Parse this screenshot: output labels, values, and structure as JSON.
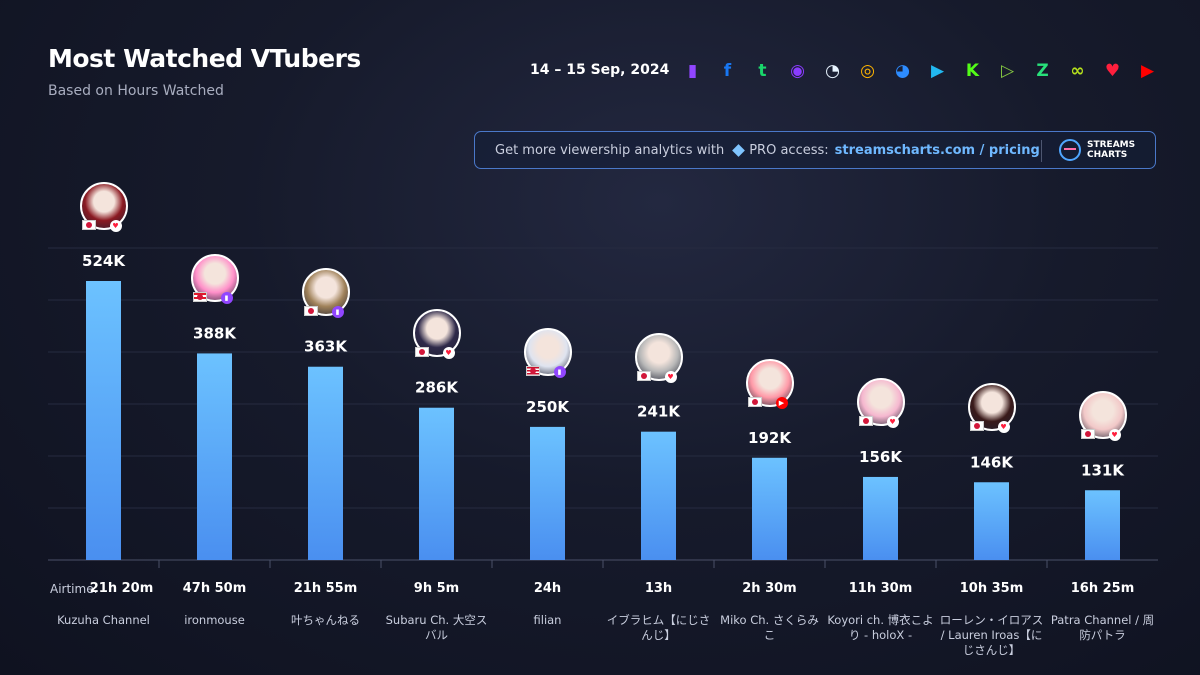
{
  "header": {
    "title": "Most Watched VTubers",
    "subtitle": "Based on Hours Watched",
    "date": "14 – 15 Sep, 2024"
  },
  "platforms": [
    {
      "name": "twitch-icon",
      "color": "#9146ff",
      "glyph": "▮"
    },
    {
      "name": "facebook-icon",
      "color": "#1877f2",
      "glyph": "f"
    },
    {
      "name": "trovo-icon",
      "color": "#19d66b",
      "glyph": "t"
    },
    {
      "name": "nimo-icon",
      "color": "#8a3cff",
      "glyph": "◉"
    },
    {
      "name": "ghost-icon",
      "color": "#e8f4ff",
      "glyph": "◔"
    },
    {
      "name": "dlive-icon",
      "color": "#ffb400",
      "glyph": "◎"
    },
    {
      "name": "bilibili-icon",
      "color": "#2d8cff",
      "glyph": "◕"
    },
    {
      "name": "camera-icon",
      "color": "#22b8f0",
      "glyph": "▶"
    },
    {
      "name": "kick-icon",
      "color": "#53fc18",
      "glyph": "K"
    },
    {
      "name": "rumble-icon",
      "color": "#85c742",
      "glyph": "▷"
    },
    {
      "name": "zap-icon",
      "color": "#28e07a",
      "glyph": "Z"
    },
    {
      "name": "infinity-icon",
      "color": "#b6e11c",
      "glyph": "∞"
    },
    {
      "name": "heart-icon",
      "color": "#ff1f3d",
      "glyph": "♥"
    },
    {
      "name": "youtube-icon",
      "color": "#ff0000",
      "glyph": "▶"
    }
  ],
  "banner": {
    "text": "Get more viewership analytics with",
    "pro": "PRO access:",
    "link": "streamscharts.com / pricing",
    "brand_line1": "STREAMS",
    "brand_line2": "CHARTS"
  },
  "airtime_label": "Airtime:",
  "colors": {
    "bar_top": "#6cc2ff",
    "bar_bottom": "#4a8ff0",
    "flag_red": "#d2173a"
  },
  "chart_data": {
    "type": "bar",
    "title": "Most Watched VTubers",
    "subtitle": "Based on Hours Watched",
    "categories": [
      "Kuzuha Channel",
      "ironmouse",
      "叶ちゃんねる",
      "Subaru Ch. 大空スバル",
      "filian",
      "イブラヒム【にじさんじ】",
      "Miko Ch. さくらみこ",
      "Koyori ch. 博衣こより - holoX -",
      "ローレン・イロアス / Lauren Iroas【にじさんじ】",
      "Patra Channel / 周防パトラ"
    ],
    "values": [
      524000,
      388000,
      363000,
      286000,
      250000,
      241000,
      192000,
      156000,
      146000,
      131000
    ],
    "value_labels": [
      "524K",
      "388K",
      "363K",
      "286K",
      "250K",
      "241K",
      "192K",
      "156K",
      "146K",
      "131K"
    ],
    "airtime": [
      "21h 20m",
      "47h 50m",
      "21h 55m",
      "9h 5m",
      "24h",
      "13h",
      "2h 30m",
      "11h 30m",
      "10h 35m",
      "16h 25m"
    ],
    "countries": [
      "jp",
      "pr",
      "jp",
      "jp",
      "us",
      "jp",
      "jp",
      "jp",
      "jp",
      "jp"
    ],
    "platform_badges": [
      "heart",
      "twitch",
      "twitch",
      "heart",
      "twitch",
      "heart",
      "youtube",
      "heart",
      "heart",
      "heart"
    ],
    "ylim": [
      0,
      524000
    ],
    "grid": true
  }
}
